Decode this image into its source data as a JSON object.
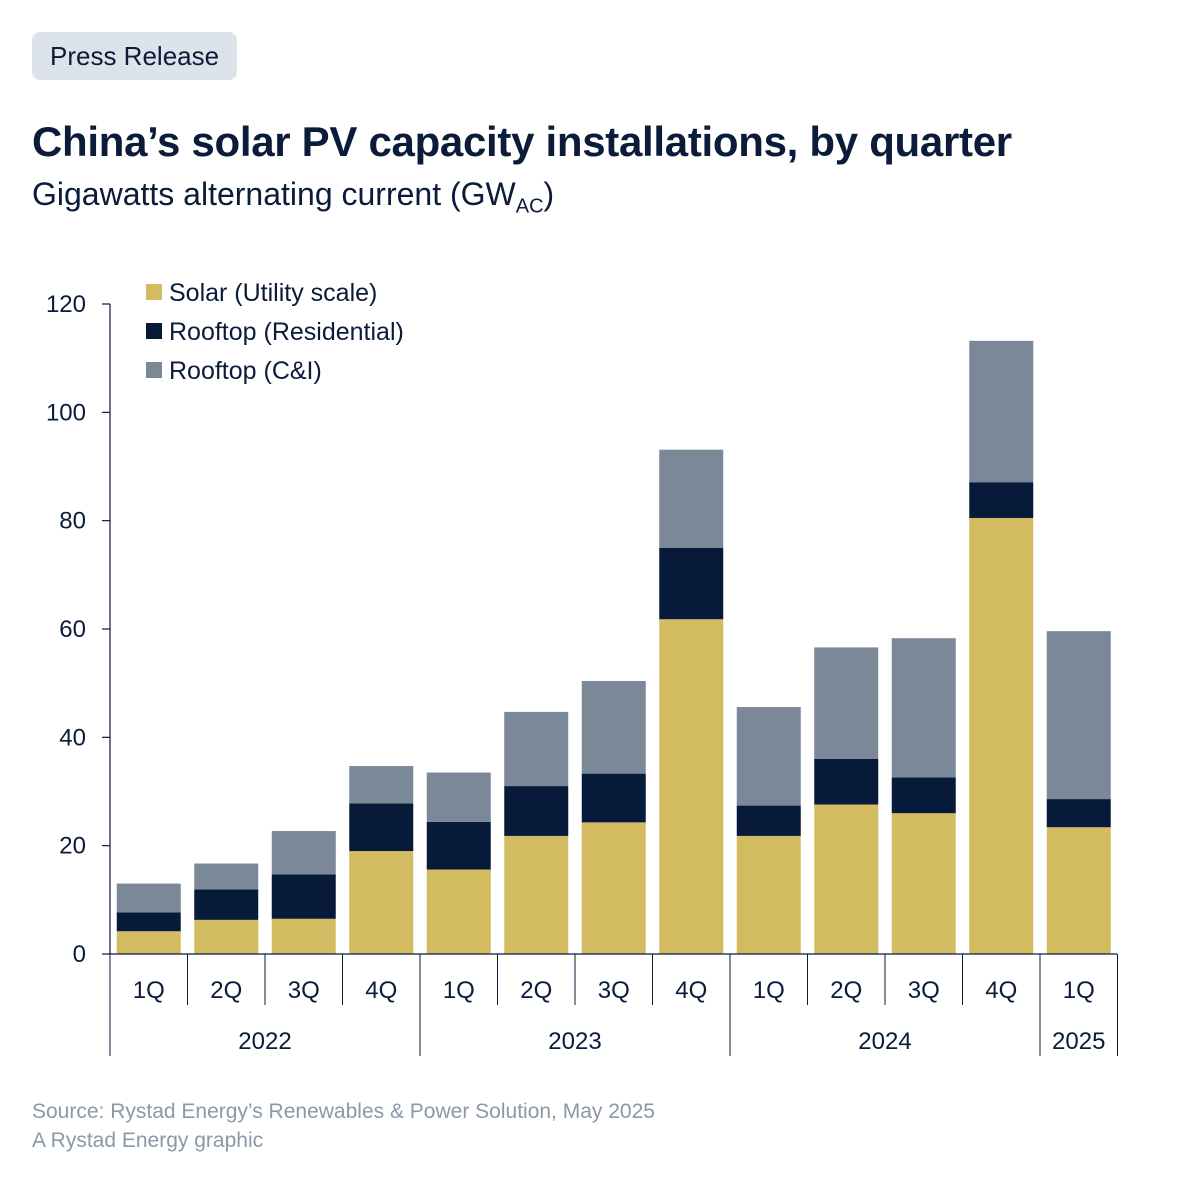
{
  "header": {
    "badge": "Press Release",
    "subtitle_main": "Gigawatts alternating current (GW",
    "subtitle_sub": "AC",
    "subtitle_end": ")"
  },
  "footer": {
    "source": "Source: Rystad Energy’s Renewables & Power Solution, May 2025",
    "credit": "A Rystad Energy graphic"
  },
  "colors": {
    "utility": "#d3bb62",
    "residential": "#081a3a",
    "cni": "#7a8898"
  },
  "chart_data": {
    "type": "bar",
    "stacked": true,
    "title": "China’s solar PV capacity installations, by quarter",
    "ylabel": "Gigawatts alternating current (GWAC)",
    "ylim": [
      0,
      120
    ],
    "yticks": [
      0,
      20,
      40,
      60,
      80,
      100,
      120
    ],
    "grid": false,
    "legend_position": "top-left",
    "categories": [
      "1Q",
      "2Q",
      "3Q",
      "4Q",
      "1Q",
      "2Q",
      "3Q",
      "4Q",
      "1Q",
      "2Q",
      "3Q",
      "4Q",
      "1Q"
    ],
    "years": [
      {
        "label": "2022",
        "count": 4
      },
      {
        "label": "2023",
        "count": 4
      },
      {
        "label": "2024",
        "count": 4
      },
      {
        "label": "2025",
        "count": 1
      }
    ],
    "series": [
      {
        "name": "Solar (Utility scale)",
        "values": [
          4.2,
          6.3,
          6.5,
          19.0,
          15.6,
          21.8,
          24.3,
          61.8,
          21.8,
          27.6,
          26.0,
          80.5,
          23.4
        ]
      },
      {
        "name": "Rooftop (Residential)",
        "values": [
          3.5,
          5.6,
          8.2,
          8.8,
          8.8,
          9.2,
          9.0,
          13.2,
          5.6,
          8.4,
          6.6,
          6.6,
          5.2
        ]
      },
      {
        "name": "Rooftop (C&I)",
        "values": [
          5.3,
          4.8,
          8.0,
          6.9,
          9.1,
          13.7,
          17.1,
          18.1,
          18.2,
          20.6,
          25.7,
          26.1,
          31.0
        ]
      }
    ]
  }
}
